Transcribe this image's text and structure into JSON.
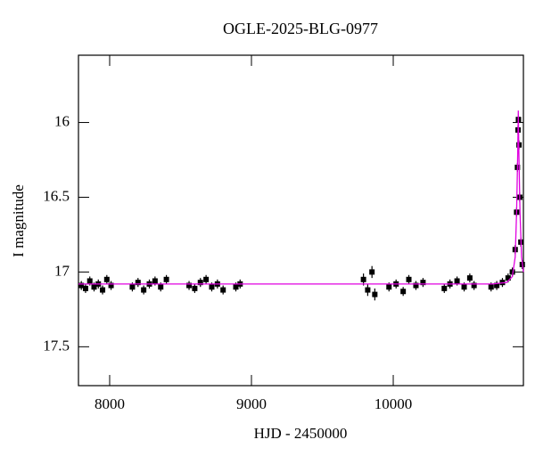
{
  "chart_data": {
    "type": "scatter",
    "title": "OGLE-2025-BLG-0977",
    "xlabel": "HJD - 2450000",
    "ylabel": "I magnitude",
    "xlim": [
      7780,
      10918
    ],
    "ylim": [
      17.76,
      15.55
    ],
    "xticks": [
      8000,
      9000,
      10000
    ],
    "yticks": [
      16,
      16.5,
      17,
      17.5
    ],
    "series": [
      {
        "color": "#000000",
        "x": [
          7800,
          7830,
          7860,
          7890,
          7920,
          7950,
          7980,
          8010,
          8160,
          8200,
          8240,
          8280,
          8320,
          8360,
          8400,
          8560,
          8600,
          8640,
          8680,
          8720,
          8760,
          8800,
          8890,
          8920,
          9790,
          9820,
          9850,
          9870,
          9970,
          10020,
          10070,
          10110,
          10160,
          10210,
          10360,
          10400,
          10450,
          10500,
          10540,
          10570,
          10690,
          10730,
          10770,
          10810,
          10840,
          10860,
          10870,
          10876,
          10880,
          10883,
          10887,
          10892,
          10900,
          10910
        ],
        "values": [
          17.09,
          17.11,
          17.06,
          17.1,
          17.08,
          17.12,
          17.05,
          17.09,
          17.1,
          17.07,
          17.12,
          17.08,
          17.06,
          17.1,
          17.05,
          17.09,
          17.11,
          17.07,
          17.05,
          17.1,
          17.08,
          17.12,
          17.1,
          17.08,
          17.05,
          17.12,
          17.0,
          17.15,
          17.1,
          17.08,
          17.13,
          17.05,
          17.09,
          17.07,
          17.11,
          17.08,
          17.06,
          17.1,
          17.04,
          17.09,
          17.1,
          17.09,
          17.07,
          17.04,
          17.0,
          16.85,
          16.6,
          16.3,
          16.05,
          15.98,
          16.15,
          16.5,
          16.8,
          16.95
        ],
        "errors": [
          0.03,
          0.03,
          0.03,
          0.03,
          0.03,
          0.03,
          0.03,
          0.03,
          0.03,
          0.03,
          0.03,
          0.03,
          0.03,
          0.03,
          0.03,
          0.03,
          0.03,
          0.03,
          0.03,
          0.03,
          0.03,
          0.03,
          0.03,
          0.03,
          0.04,
          0.04,
          0.04,
          0.04,
          0.03,
          0.03,
          0.03,
          0.03,
          0.03,
          0.03,
          0.03,
          0.03,
          0.03,
          0.03,
          0.03,
          0.03,
          0.03,
          0.03,
          0.03,
          0.03,
          0.03,
          0.03,
          0.03,
          0.03,
          0.03,
          0.03,
          0.03,
          0.03,
          0.03,
          0.03
        ]
      },
      {
        "type": "line",
        "color": "#e000e0",
        "x": [
          7780,
          10700,
          10800,
          10840,
          10860,
          10870,
          10878,
          10882,
          10886,
          10894,
          10905,
          10918
        ],
        "values": [
          17.08,
          17.08,
          17.07,
          17.03,
          16.9,
          16.6,
          16.2,
          15.92,
          16.2,
          16.6,
          16.9,
          17.0
        ]
      }
    ]
  }
}
